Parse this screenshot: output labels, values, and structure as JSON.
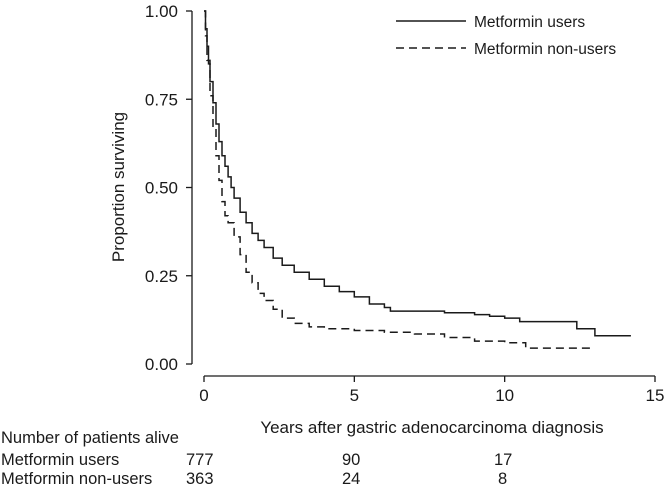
{
  "chart_data": {
    "type": "line",
    "subtype": "kaplan-meier step",
    "xlabel": "Years after gastric adenocarcinoma diagnosis",
    "ylabel": "Proportion surviving",
    "xlim": [
      0,
      15
    ],
    "ylim": [
      0,
      1
    ],
    "x_ticks": [
      "0",
      "5",
      "10",
      "15"
    ],
    "y_ticks": [
      "0.00",
      "0.25",
      "0.50",
      "0.75",
      "1.00"
    ],
    "grid": false,
    "legend_position": "top-right",
    "series": [
      {
        "name": "Metformin users",
        "style": "solid",
        "x": [
          0,
          0.05,
          0.1,
          0.15,
          0.2,
          0.3,
          0.4,
          0.5,
          0.6,
          0.7,
          0.8,
          0.9,
          1.0,
          1.2,
          1.4,
          1.6,
          1.8,
          2.0,
          2.3,
          2.6,
          3.0,
          3.5,
          4.0,
          4.5,
          5.0,
          5.5,
          6.0,
          6.2,
          6.5,
          7.0,
          8.0,
          9.0,
          9.5,
          10.0,
          10.5,
          11.0,
          12.4,
          13.0,
          14.2
        ],
        "y": [
          1.0,
          0.95,
          0.9,
          0.85,
          0.8,
          0.74,
          0.68,
          0.63,
          0.59,
          0.56,
          0.53,
          0.5,
          0.47,
          0.43,
          0.4,
          0.37,
          0.35,
          0.33,
          0.3,
          0.28,
          0.26,
          0.24,
          0.22,
          0.205,
          0.19,
          0.17,
          0.16,
          0.15,
          0.15,
          0.15,
          0.145,
          0.14,
          0.135,
          0.13,
          0.12,
          0.12,
          0.1,
          0.08,
          0.08
        ]
      },
      {
        "name": "Metformin non-users",
        "style": "dashed",
        "x": [
          0,
          0.05,
          0.1,
          0.2,
          0.3,
          0.4,
          0.5,
          0.6,
          0.7,
          0.8,
          1.0,
          1.2,
          1.4,
          1.6,
          1.8,
          2.0,
          2.3,
          2.6,
          3.0,
          3.5,
          4.0,
          5.0,
          6.0,
          7.0,
          8.0,
          9.0,
          10.0,
          10.5,
          10.7,
          11.5,
          12.0,
          13.0
        ],
        "y": [
          1.0,
          0.93,
          0.86,
          0.76,
          0.67,
          0.59,
          0.52,
          0.46,
          0.42,
          0.4,
          0.36,
          0.31,
          0.26,
          0.23,
          0.2,
          0.18,
          0.155,
          0.13,
          0.115,
          0.105,
          0.1,
          0.095,
          0.09,
          0.085,
          0.075,
          0.065,
          0.06,
          0.06,
          0.045,
          0.045,
          0.045,
          0.045
        ]
      }
    ]
  },
  "risk_table": {
    "title": "Number of patients alive",
    "rows": [
      {
        "label": "Metformin users",
        "counts": [
          "777",
          "90",
          "17"
        ]
      },
      {
        "label": "Metformin non-users",
        "counts": [
          "363",
          "24",
          "8"
        ]
      }
    ]
  }
}
